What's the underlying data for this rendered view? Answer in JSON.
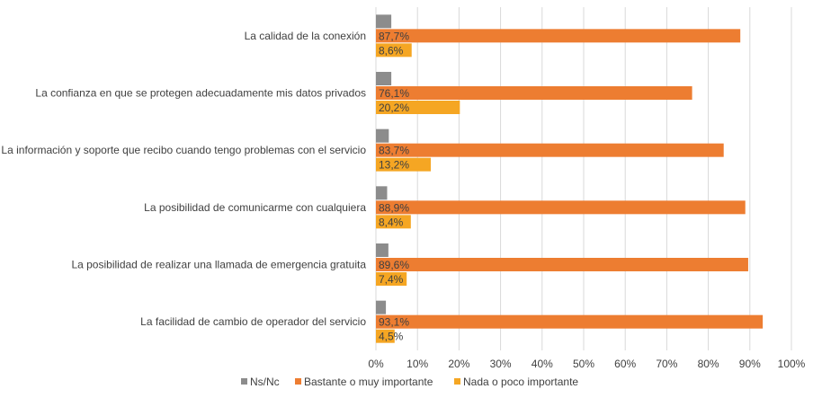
{
  "chart_data": {
    "type": "bar",
    "orientation": "horizontal",
    "categories": [
      "La calidad de la conexión",
      "La confianza en que se protegen adecuadamente mis datos privados",
      "La información y soporte que recibo cuando tengo problemas con el servicio",
      "La posibilidad de comunicarme con cualquiera",
      "La posibilidad de realizar una llamada de emergencia gratuita",
      "La facilidad de cambio de operador del servicio"
    ],
    "series": [
      {
        "name": "Ns/Nc",
        "color": "#8c8c8c",
        "values": [
          3.7,
          3.7,
          3.1,
          2.7,
          3.0,
          2.4
        ],
        "labels": [
          "",
          "",
          "",
          "",
          "",
          ""
        ]
      },
      {
        "name": "Bastante o muy importante",
        "color": "#ed7d31",
        "values": [
          87.7,
          76.1,
          83.7,
          88.9,
          89.6,
          93.1
        ],
        "labels": [
          "87,7%",
          "76,1%",
          "83,7%",
          "88,9%",
          "89,6%",
          "93,1%"
        ]
      },
      {
        "name": "Nada o poco importante",
        "color": "#f5a623",
        "values": [
          8.6,
          20.2,
          13.2,
          8.4,
          7.4,
          4.5
        ],
        "labels": [
          "8,6%",
          "20,2%",
          "13,2%",
          "8,4%",
          "7,4%",
          "4,5%"
        ]
      }
    ],
    "xlim": [
      0,
      100
    ],
    "xticks": [
      "0%",
      "10%",
      "20%",
      "30%",
      "40%",
      "50%",
      "60%",
      "70%",
      "80%",
      "90%",
      "100%"
    ],
    "grid": true,
    "legend": "bottom"
  }
}
